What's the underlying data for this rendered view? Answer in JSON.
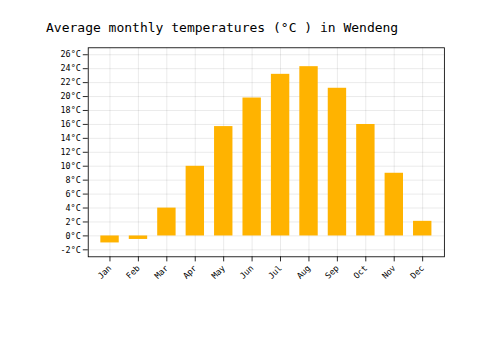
{
  "chart_data": {
    "type": "bar",
    "title": "Average monthly temperatures (°C ) in Wendeng",
    "categories": [
      "Jan",
      "Feb",
      "Mar",
      "Apr",
      "May",
      "Jun",
      "Jul",
      "Aug",
      "Sep",
      "Oct",
      "Nov",
      "Dec"
    ],
    "values": [
      -1.0,
      -0.5,
      4.0,
      10.0,
      15.7,
      19.8,
      23.2,
      24.3,
      21.2,
      16.0,
      9.0,
      2.1
    ],
    "color": "#FFB300",
    "ylim": [
      -3,
      27
    ],
    "yticks": [
      {
        "value": -2,
        "label": "-2°C"
      },
      {
        "value": 0,
        "label": "0°C"
      },
      {
        "value": 2,
        "label": "2°C"
      },
      {
        "value": 4,
        "label": "4°C"
      },
      {
        "value": 6,
        "label": "6°C"
      },
      {
        "value": 8,
        "label": "8°C"
      },
      {
        "value": 10,
        "label": "10°C"
      },
      {
        "value": 12,
        "label": "12°C"
      },
      {
        "value": 14,
        "label": "14°C"
      },
      {
        "value": 16,
        "label": "16°C"
      },
      {
        "value": 18,
        "label": "18°C"
      },
      {
        "value": 20,
        "label": "20°C"
      },
      {
        "value": 22,
        "label": "22°C"
      },
      {
        "value": 24,
        "label": "24°C"
      },
      {
        "value": 26,
        "label": "26°C"
      }
    ],
    "grid": true
  }
}
